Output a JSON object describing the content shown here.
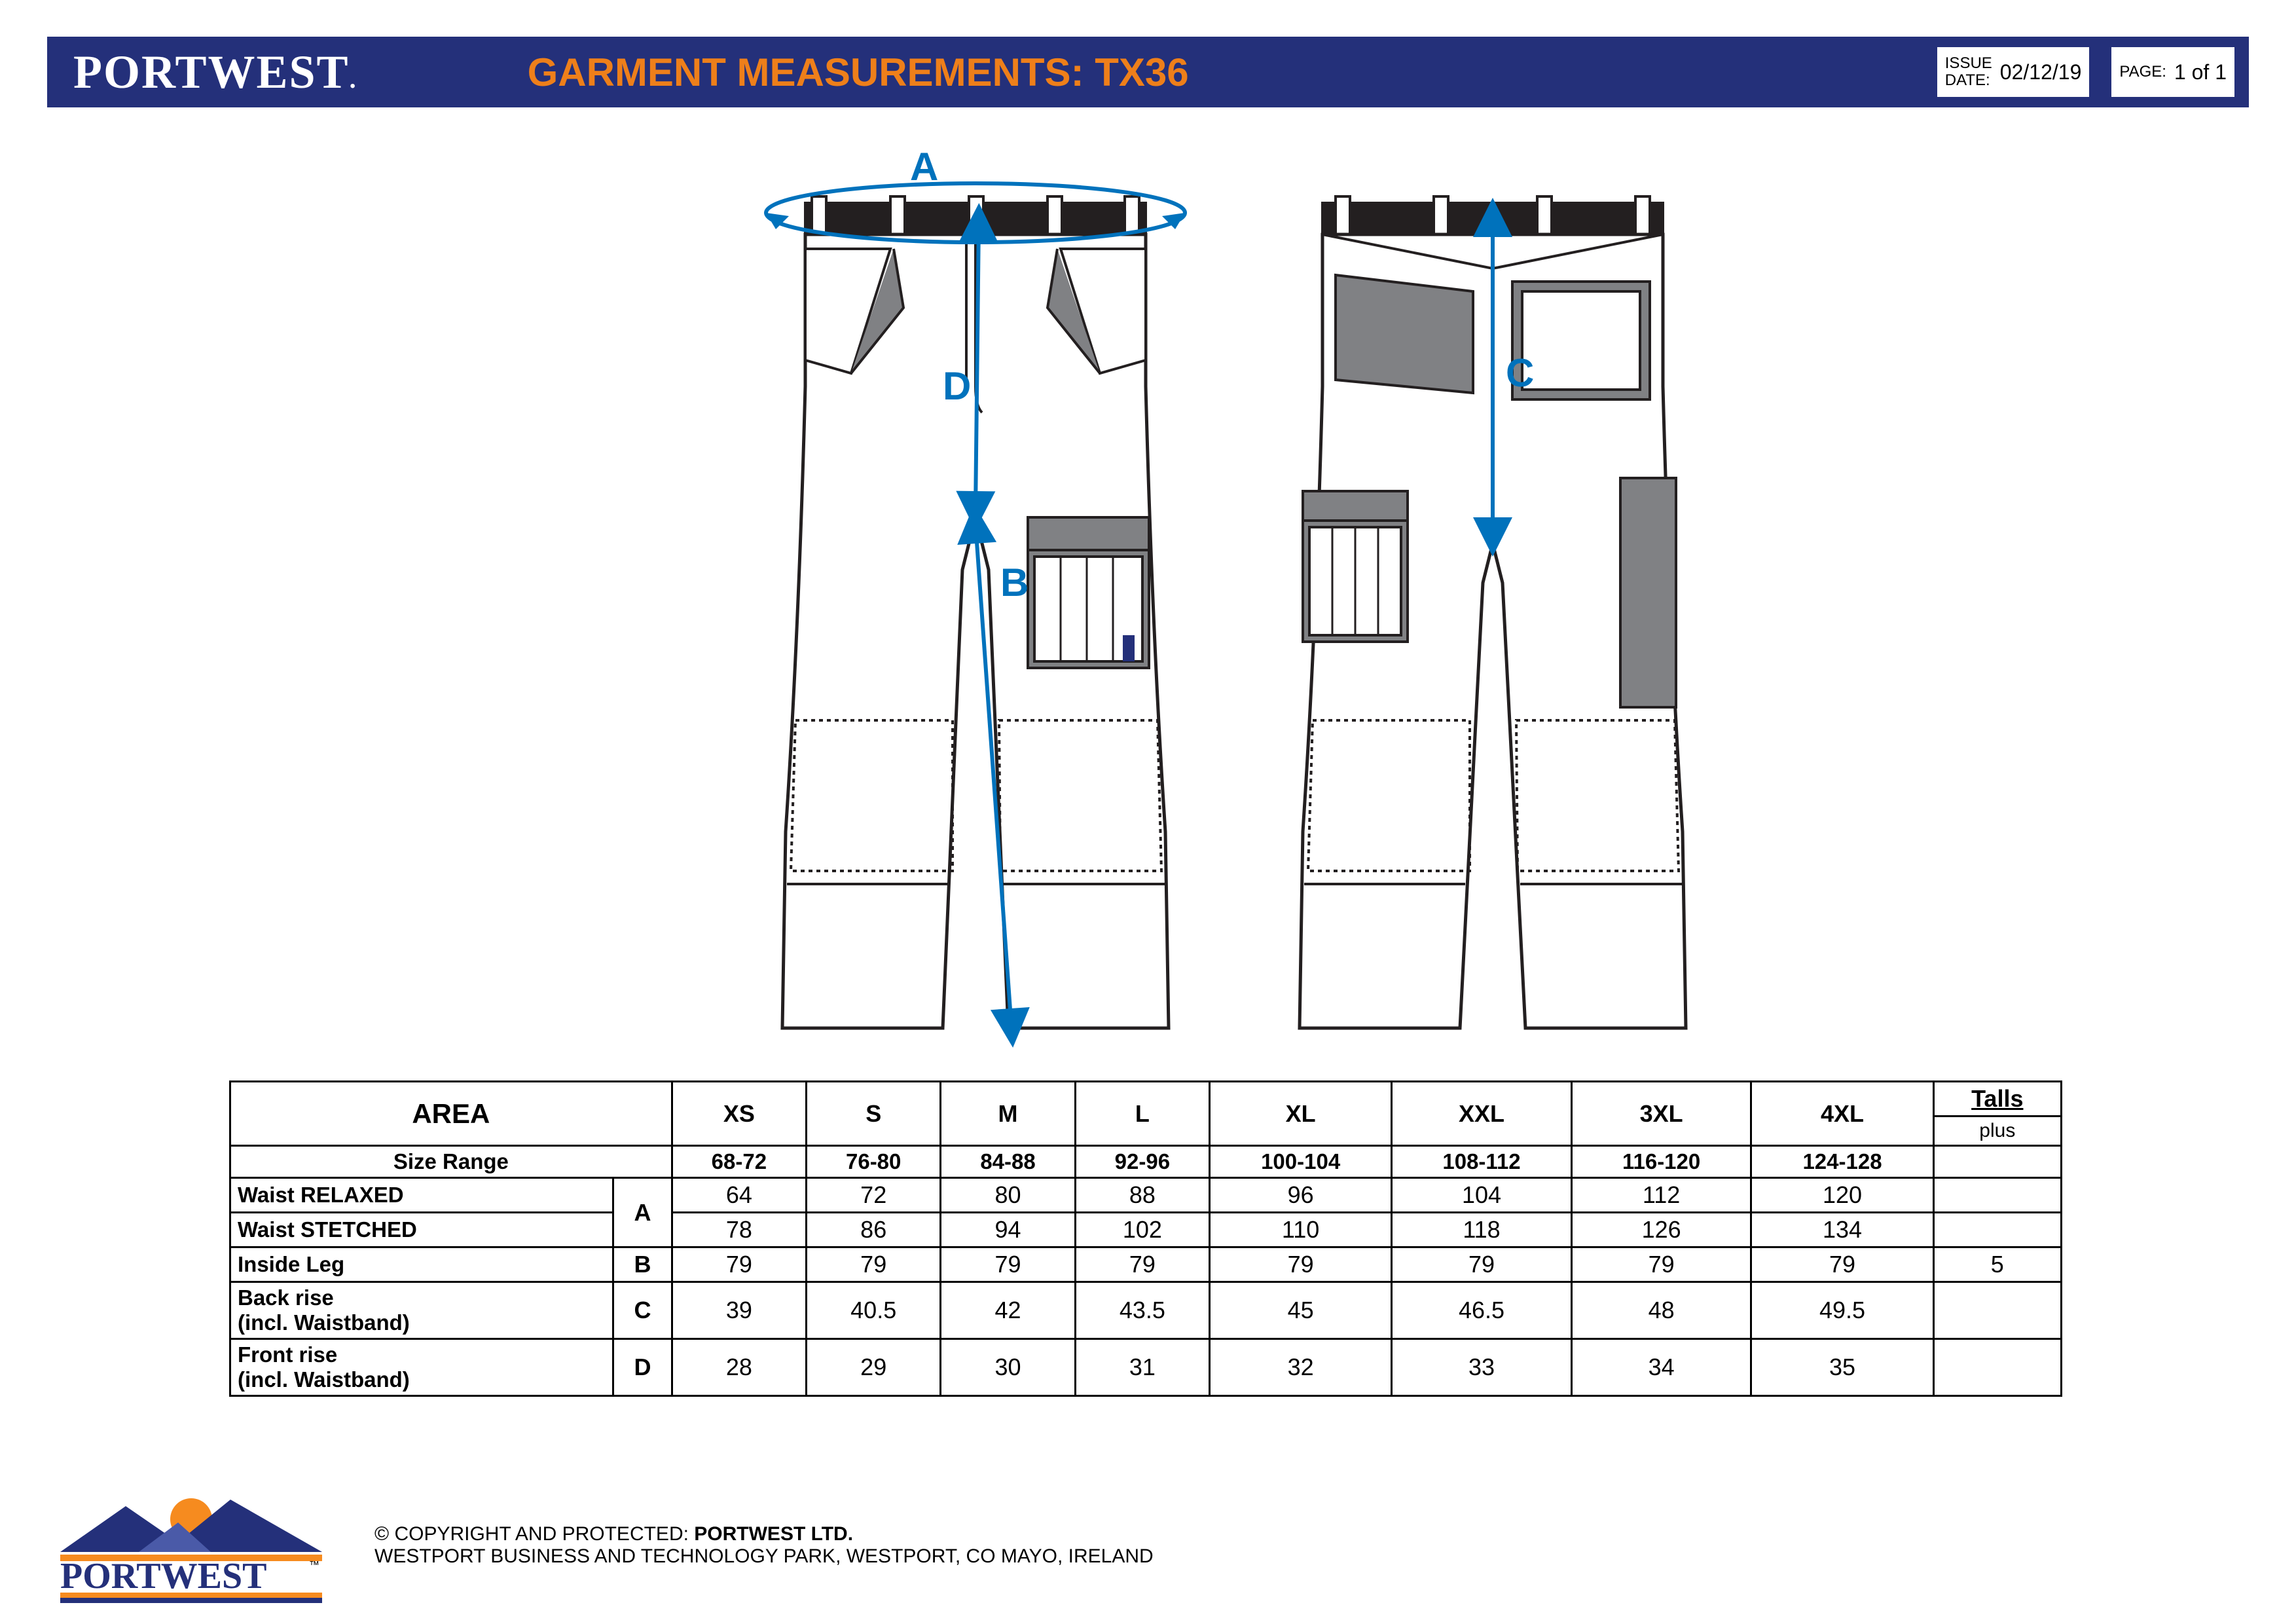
{
  "header": {
    "brand": "PORTWEST",
    "title": "GARMENT MEASUREMENTS: TX36",
    "issue_date_label": "ISSUE DATE:",
    "issue_date": "02/12/19",
    "page_label": "PAGE:",
    "page": "1 of 1"
  },
  "diagram": {
    "labels": {
      "A": "A",
      "B": "B",
      "C": "C",
      "D": "D"
    },
    "line_color": "#0072bc",
    "label_color": "#0072bc",
    "garment_outline": "#231f20",
    "garment_fill": "#ffffff",
    "accent_fill": "#808184",
    "waistband_fill": "#231f20"
  },
  "table": {
    "area_label": "AREA",
    "sizes": [
      "XS",
      "S",
      "M",
      "L",
      "XL",
      "XXL",
      "3XL",
      "4XL"
    ],
    "talls_label": "Talls",
    "talls_plus": "plus",
    "size_range_label": "Size Range",
    "size_range": [
      "68-72",
      "76-80",
      "84-88",
      "92-96",
      "100-104",
      "108-112",
      "116-120",
      "124-128"
    ],
    "rows": [
      {
        "label": "Waist RELAXED",
        "code": "A",
        "rowspan_code": 2,
        "values": [
          "64",
          "72",
          "80",
          "88",
          "96",
          "104",
          "112",
          "120",
          ""
        ]
      },
      {
        "label": "Waist STETCHED",
        "code": "",
        "values": [
          "78",
          "86",
          "94",
          "102",
          "110",
          "118",
          "126",
          "134",
          ""
        ]
      },
      {
        "label": "Inside Leg",
        "code": "B",
        "rowspan_code": 1,
        "values": [
          "79",
          "79",
          "79",
          "79",
          "79",
          "79",
          "79",
          "79",
          "5"
        ]
      },
      {
        "label": "Back rise (incl. Waistband)",
        "code": "C",
        "rowspan_code": 1,
        "values": [
          "39",
          "40.5",
          "42",
          "43.5",
          "45",
          "46.5",
          "48",
          "49.5",
          ""
        ]
      },
      {
        "label": "Front rise (incl. Waistband)",
        "code": "D",
        "rowspan_code": 1,
        "values": [
          "28",
          "29",
          "30",
          "31",
          "32",
          "33",
          "34",
          "35",
          ""
        ]
      }
    ]
  },
  "footer": {
    "copyright_pre": "© COPYRIGHT AND PROTECTED: ",
    "copyright_bold": "PORTWEST LTD.",
    "address": "WESTPORT BUSINESS AND TECHNOLOGY PARK, WESTPORT, CO MAYO, IRELAND",
    "logo_text": "PORTWEST",
    "logo_colors": {
      "mountain": "#24307a",
      "sun": "#f68b1f",
      "bar_top": "#f68b1f",
      "bar_bot": "#24307a",
      "tm": "#000000"
    }
  },
  "colors": {
    "header_bg": "#24307a",
    "title": "#ee7f1a",
    "white": "#ffffff",
    "black": "#000000"
  }
}
